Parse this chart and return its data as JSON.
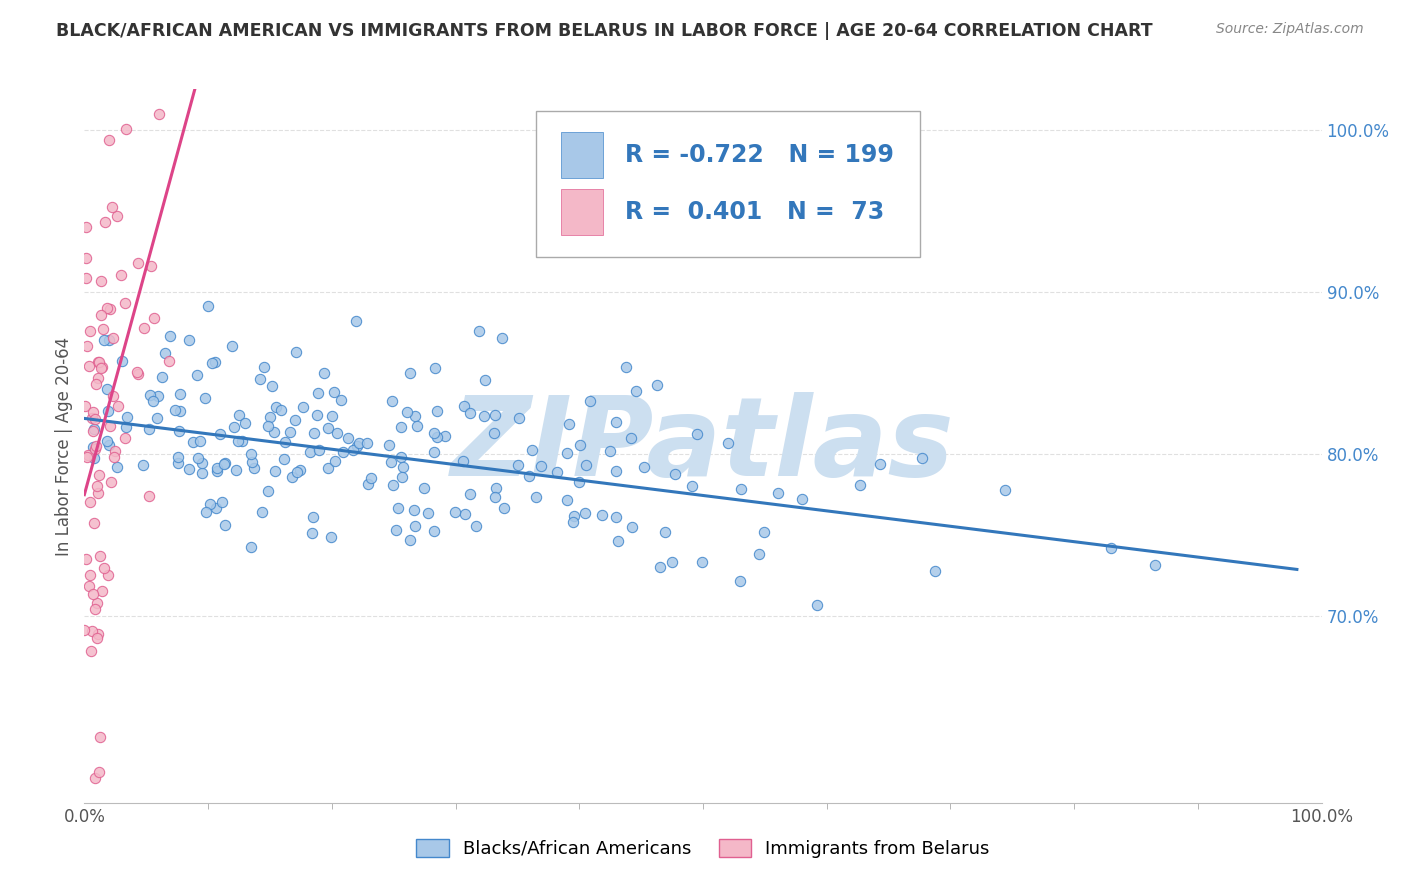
{
  "title": "BLACK/AFRICAN AMERICAN VS IMMIGRANTS FROM BELARUS IN LABOR FORCE | AGE 20-64 CORRELATION CHART",
  "source": "Source: ZipAtlas.com",
  "ylabel": "In Labor Force | Age 20-64",
  "xlim": [
    0.0,
    1.0
  ],
  "ylim": [
    0.585,
    1.025
  ],
  "yticks": [
    0.7,
    0.8,
    0.9,
    1.0
  ],
  "ytick_labels": [
    "70.0%",
    "80.0%",
    "90.0%",
    "100.0%"
  ],
  "xtick_labels": [
    "0.0%",
    "100.0%"
  ],
  "legend_r1": "-0.722",
  "legend_n1": "199",
  "legend_r2": "0.401",
  "legend_n2": "73",
  "blue_color": "#a8c8e8",
  "pink_color": "#f4b8c8",
  "blue_edge_color": "#4488cc",
  "pink_edge_color": "#e06090",
  "blue_line_color": "#3377bb",
  "pink_line_color": "#dd4488",
  "watermark": "ZIPatlas",
  "watermark_color": "#ccdff0",
  "background_color": "#ffffff",
  "grid_color": "#e0e0e0",
  "title_color": "#333333",
  "source_color": "#888888",
  "ylabel_color": "#555555",
  "ytick_color": "#4488cc",
  "xtick_color": "#555555",
  "title_fontsize": 12.5,
  "axis_label_fontsize": 12,
  "tick_fontsize": 12,
  "legend_fontsize": 17,
  "blue_seed": 42,
  "pink_seed": 7,
  "blue_n": 199,
  "pink_n": 73,
  "blue_intercept": 0.822,
  "blue_slope": -0.095,
  "pink_intercept": 0.775,
  "pink_slope": 2.8
}
